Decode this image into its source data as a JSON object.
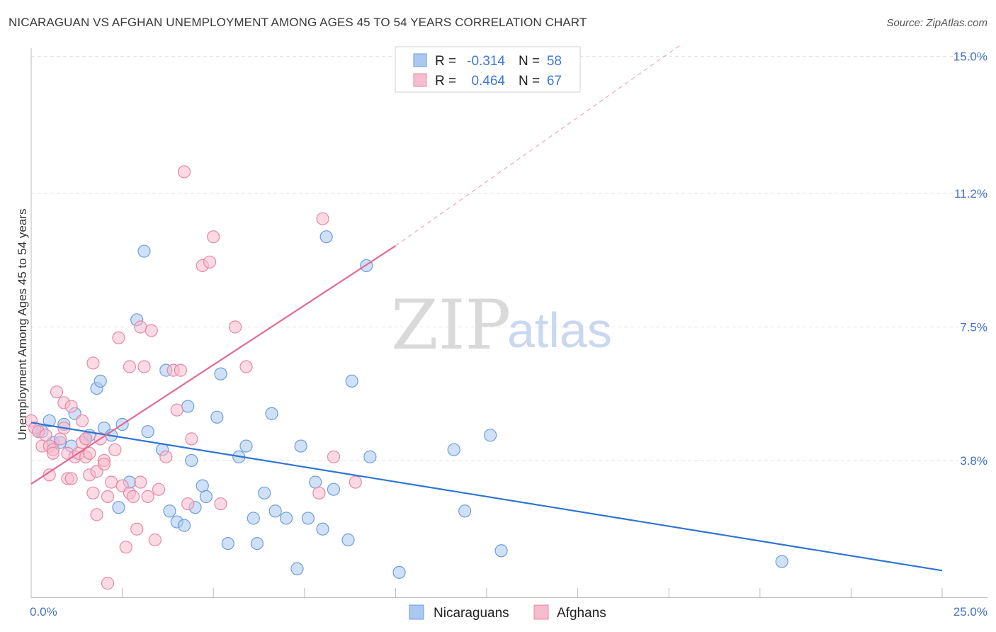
{
  "title": "NICARAGUAN VS AFGHAN UNEMPLOYMENT AMONG AGES 45 TO 54 YEARS CORRELATION CHART",
  "source": "Source: ZipAtlas.com",
  "watermark": {
    "zip": "ZIP",
    "atlas": "atlas"
  },
  "legend": {
    "rows": [
      {
        "r_label": "R =",
        "r_value": "-0.314",
        "n_label": "N =",
        "n_value": "58",
        "color": "#aac8f0",
        "edge": "#6a9ee0"
      },
      {
        "r_label": "R =",
        "r_value": "0.464",
        "n_label": "N =",
        "n_value": "67",
        "color": "#f7bccd",
        "edge": "#e888a5"
      }
    ]
  },
  "bottom_legend": [
    {
      "label": "Nicaraguans",
      "color": "#aac8f0",
      "edge": "#6a9ee0"
    },
    {
      "label": "Afghans",
      "color": "#f7bccd",
      "edge": "#e888a5"
    }
  ],
  "chart_data": {
    "type": "scatter",
    "title": "NICARAGUAN VS AFGHAN UNEMPLOYMENT AMONG AGES 45 TO 54 YEARS CORRELATION CHART",
    "xlabel": "",
    "ylabel": "Unemployment Among Ages 45 to 54 years",
    "xlim": [
      0,
      25
    ],
    "ylim": [
      0,
      15.5
    ],
    "x_tick_labels": [
      "0.0%",
      "25.0%"
    ],
    "y_ticks": [
      3.8,
      7.5,
      11.2,
      15.0
    ],
    "y_tick_labels": [
      "3.8%",
      "7.5%",
      "11.2%",
      "15.0%"
    ],
    "grid": true,
    "legend_position": "top-center",
    "series": [
      {
        "name": "Nicaraguans",
        "color": "#aac8f0",
        "edge": "#6a9ee0",
        "trend": {
          "x0": 0.0,
          "y0": 4.85,
          "x1": 25.0,
          "y1": 0.75,
          "color": "#2f74d0",
          "dashed_extension": false
        },
        "points": [
          [
            0.2,
            4.6
          ],
          [
            0.3,
            4.6
          ],
          [
            0.5,
            4.9
          ],
          [
            0.6,
            4.3
          ],
          [
            0.8,
            4.3
          ],
          [
            0.9,
            4.8
          ],
          [
            1.1,
            4.2
          ],
          [
            1.2,
            5.1
          ],
          [
            1.5,
            4.4
          ],
          [
            1.6,
            4.5
          ],
          [
            1.8,
            5.8
          ],
          [
            1.9,
            6.0
          ],
          [
            2.0,
            4.7
          ],
          [
            2.2,
            4.5
          ],
          [
            2.4,
            2.5
          ],
          [
            2.5,
            4.8
          ],
          [
            2.7,
            3.2
          ],
          [
            2.9,
            7.7
          ],
          [
            3.1,
            9.6
          ],
          [
            3.2,
            4.6
          ],
          [
            3.6,
            4.1
          ],
          [
            3.7,
            6.3
          ],
          [
            3.8,
            2.4
          ],
          [
            4.0,
            2.1
          ],
          [
            4.2,
            2.0
          ],
          [
            4.3,
            5.3
          ],
          [
            4.4,
            3.8
          ],
          [
            4.5,
            2.5
          ],
          [
            4.7,
            3.1
          ],
          [
            4.8,
            2.8
          ],
          [
            5.1,
            5.0
          ],
          [
            5.2,
            6.2
          ],
          [
            5.4,
            1.5
          ],
          [
            5.7,
            3.9
          ],
          [
            5.9,
            4.2
          ],
          [
            6.1,
            2.2
          ],
          [
            6.2,
            1.5
          ],
          [
            6.4,
            2.9
          ],
          [
            6.6,
            5.1
          ],
          [
            6.7,
            2.4
          ],
          [
            7.0,
            2.2
          ],
          [
            7.3,
            0.8
          ],
          [
            7.4,
            4.2
          ],
          [
            7.6,
            2.2
          ],
          [
            7.8,
            3.2
          ],
          [
            8.0,
            1.9
          ],
          [
            8.1,
            10.0
          ],
          [
            8.3,
            3.0
          ],
          [
            8.7,
            1.6
          ],
          [
            8.8,
            6.0
          ],
          [
            9.2,
            9.2
          ],
          [
            9.3,
            3.9
          ],
          [
            10.1,
            0.7
          ],
          [
            11.6,
            4.1
          ],
          [
            11.9,
            2.4
          ],
          [
            12.6,
            4.5
          ],
          [
            12.9,
            1.3
          ],
          [
            20.6,
            1.0
          ]
        ]
      },
      {
        "name": "Afghans",
        "color": "#f7bccd",
        "edge": "#e888a5",
        "trend": {
          "x0": 0.0,
          "y0": 3.15,
          "x1": 10.0,
          "y1": 9.75,
          "color": "#e06a94",
          "dashed_to": [
            17.8,
            15.3
          ]
        },
        "points": [
          [
            0.0,
            4.9
          ],
          [
            0.1,
            4.7
          ],
          [
            0.2,
            4.6
          ],
          [
            0.3,
            4.2
          ],
          [
            0.4,
            4.5
          ],
          [
            0.5,
            4.2
          ],
          [
            0.5,
            3.4
          ],
          [
            0.6,
            4.1
          ],
          [
            0.6,
            4.0
          ],
          [
            0.7,
            5.7
          ],
          [
            0.8,
            4.4
          ],
          [
            0.9,
            4.7
          ],
          [
            0.9,
            5.4
          ],
          [
            1.0,
            3.3
          ],
          [
            1.0,
            4.0
          ],
          [
            1.1,
            3.3
          ],
          [
            1.1,
            5.3
          ],
          [
            1.2,
            3.9
          ],
          [
            1.3,
            4.0
          ],
          [
            1.4,
            4.3
          ],
          [
            1.4,
            4.9
          ],
          [
            1.5,
            3.9
          ],
          [
            1.5,
            4.4
          ],
          [
            1.6,
            3.4
          ],
          [
            1.6,
            4.0
          ],
          [
            1.7,
            6.5
          ],
          [
            1.7,
            2.9
          ],
          [
            1.8,
            3.5
          ],
          [
            1.8,
            2.3
          ],
          [
            1.9,
            4.4
          ],
          [
            2.0,
            3.8
          ],
          [
            2.0,
            3.7
          ],
          [
            2.1,
            2.8
          ],
          [
            2.1,
            0.4
          ],
          [
            2.2,
            3.2
          ],
          [
            2.3,
            4.1
          ],
          [
            2.4,
            7.2
          ],
          [
            2.5,
            3.1
          ],
          [
            2.6,
            1.4
          ],
          [
            2.7,
            6.4
          ],
          [
            2.7,
            2.9
          ],
          [
            2.8,
            2.8
          ],
          [
            2.9,
            1.9
          ],
          [
            3.0,
            3.2
          ],
          [
            3.0,
            7.5
          ],
          [
            3.1,
            6.4
          ],
          [
            3.2,
            2.8
          ],
          [
            3.3,
            7.4
          ],
          [
            3.4,
            1.6
          ],
          [
            3.5,
            3.0
          ],
          [
            3.7,
            3.9
          ],
          [
            3.9,
            6.3
          ],
          [
            4.0,
            5.2
          ],
          [
            4.1,
            6.3
          ],
          [
            4.2,
            11.8
          ],
          [
            4.3,
            2.6
          ],
          [
            4.4,
            4.4
          ],
          [
            4.7,
            9.2
          ],
          [
            4.9,
            9.3
          ],
          [
            5.0,
            10.0
          ],
          [
            5.2,
            2.6
          ],
          [
            5.6,
            7.5
          ],
          [
            5.9,
            6.4
          ],
          [
            7.9,
            2.9
          ],
          [
            8.0,
            10.5
          ],
          [
            8.3,
            3.9
          ],
          [
            8.9,
            3.2
          ]
        ]
      }
    ]
  }
}
